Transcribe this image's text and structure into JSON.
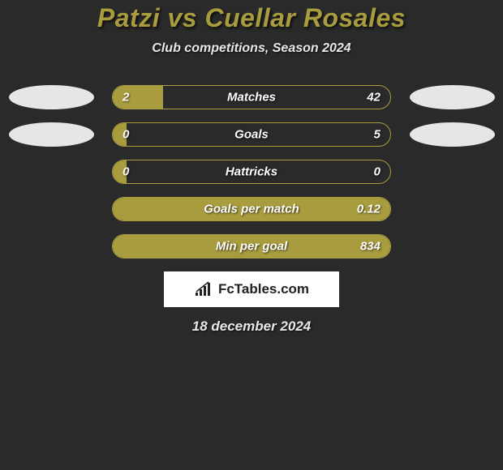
{
  "title": "Patzi vs Cuellar Rosales",
  "subtitle": "Club competitions, Season 2024",
  "colors": {
    "accent": "#a89c3f",
    "bg": "#2a2a2a",
    "avatar": "#e6e6e6"
  },
  "rows": [
    {
      "label": "Matches",
      "left": "2",
      "right": "42",
      "fill_pct": 18,
      "show_avatars": true
    },
    {
      "label": "Goals",
      "left": "0",
      "right": "5",
      "fill_pct": 5,
      "show_avatars": true
    },
    {
      "label": "Hattricks",
      "left": "0",
      "right": "0",
      "fill_pct": 5,
      "show_avatars": false
    },
    {
      "label": "Goals per match",
      "left": "",
      "right": "0.12",
      "fill_pct": 100,
      "show_avatars": false
    },
    {
      "label": "Min per goal",
      "left": "",
      "right": "834",
      "fill_pct": 100,
      "show_avatars": false
    }
  ],
  "badge": {
    "text": "FcTables.com"
  },
  "date": "18 december 2024"
}
